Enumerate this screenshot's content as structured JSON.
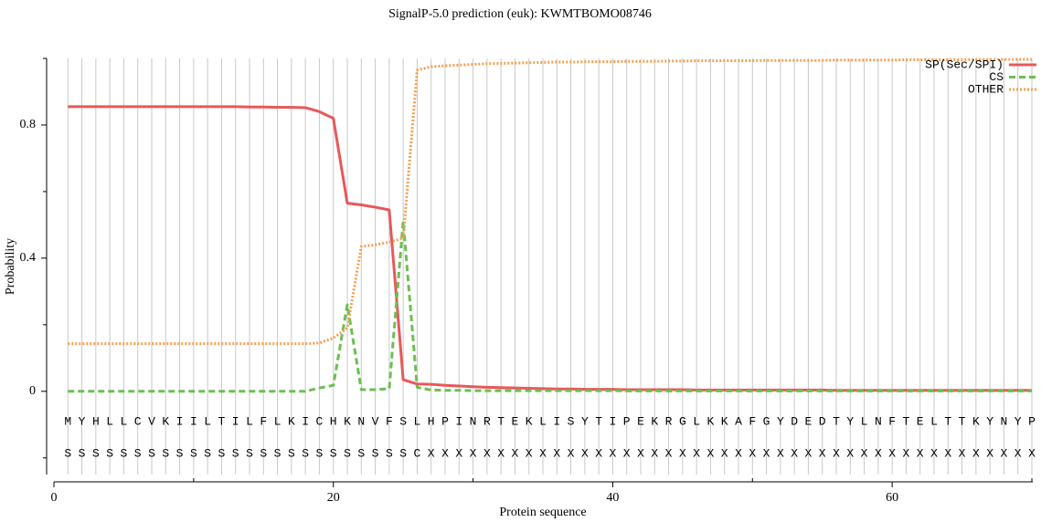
{
  "chart_data": {
    "type": "line",
    "title": "SignalP-5.0 prediction (euk):  KWMTBOMO08746",
    "x_label": "Protein sequence",
    "y_label": "Probability",
    "x": [
      1,
      2,
      3,
      4,
      5,
      6,
      7,
      8,
      9,
      10,
      11,
      12,
      13,
      14,
      15,
      16,
      17,
      18,
      19,
      20,
      21,
      22,
      23,
      24,
      25,
      26,
      27,
      28,
      29,
      30,
      31,
      32,
      33,
      34,
      35,
      36,
      37,
      38,
      39,
      40,
      41,
      42,
      43,
      44,
      45,
      46,
      47,
      48,
      49,
      50,
      51,
      52,
      53,
      54,
      55,
      56,
      57,
      58,
      59,
      60,
      61,
      62,
      63,
      64,
      65,
      66,
      67,
      68,
      69,
      70
    ],
    "sequence": [
      "M",
      "Y",
      "H",
      "L",
      "L",
      "C",
      "V",
      "K",
      "I",
      "I",
      "L",
      "T",
      "I",
      "L",
      "F",
      "L",
      "K",
      "I",
      "C",
      "H",
      "K",
      "N",
      "V",
      "F",
      "S",
      "L",
      "H",
      "P",
      "I",
      "N",
      "R",
      "T",
      "E",
      "K",
      "L",
      "I",
      "S",
      "Y",
      "T",
      "I",
      "P",
      "E",
      "K",
      "R",
      "G",
      "L",
      "K",
      "K",
      "A",
      "F",
      "G",
      "Y",
      "D",
      "E",
      "D",
      "T",
      "Y",
      "L",
      "N",
      "F",
      "T",
      "E",
      "L",
      "T",
      "T",
      "K",
      "Y",
      "N",
      "Y",
      "P"
    ],
    "labels": [
      "S",
      "S",
      "S",
      "S",
      "S",
      "S",
      "S",
      "S",
      "S",
      "S",
      "S",
      "S",
      "S",
      "S",
      "S",
      "S",
      "S",
      "S",
      "S",
      "S",
      "S",
      "S",
      "S",
      "S",
      "S",
      "C",
      "X",
      "X",
      "X",
      "X",
      "X",
      "X",
      "X",
      "X",
      "X",
      "X",
      "X",
      "X",
      "X",
      "X",
      "X",
      "X",
      "X",
      "X",
      "X",
      "X",
      "X",
      "X",
      "X",
      "X",
      "X",
      "X",
      "X",
      "X",
      "X",
      "X",
      "X",
      "X",
      "X",
      "X",
      "X",
      "X",
      "X",
      "X",
      "X",
      "X",
      "X",
      "X",
      "X",
      "X"
    ],
    "series": [
      {
        "name": "SP(Sec/SPI)",
        "color": "#e8585a",
        "style": "solid",
        "values": [
          0.855,
          0.855,
          0.855,
          0.855,
          0.855,
          0.855,
          0.855,
          0.855,
          0.855,
          0.855,
          0.855,
          0.855,
          0.855,
          0.854,
          0.854,
          0.853,
          0.853,
          0.852,
          0.84,
          0.82,
          0.565,
          0.56,
          0.553,
          0.545,
          0.035,
          0.022,
          0.021,
          0.018,
          0.016,
          0.014,
          0.012,
          0.011,
          0.01,
          0.009,
          0.008,
          0.007,
          0.007,
          0.006,
          0.006,
          0.006,
          0.005,
          0.005,
          0.005,
          0.005,
          0.005,
          0.004,
          0.004,
          0.004,
          0.004,
          0.004,
          0.004,
          0.004,
          0.004,
          0.004,
          0.004,
          0.003,
          0.003,
          0.003,
          0.003,
          0.003,
          0.003,
          0.003,
          0.003,
          0.003,
          0.003,
          0.003,
          0.003,
          0.003,
          0.003,
          0.003
        ]
      },
      {
        "name": "CS",
        "color": "#6cbf52",
        "style": "dashed",
        "values": [
          0,
          0,
          0,
          0,
          0,
          0,
          0,
          0,
          0,
          0,
          0,
          0,
          0,
          0,
          0,
          0,
          0,
          0,
          0.01,
          0.018,
          0.26,
          0.005,
          0.005,
          0.008,
          0.51,
          0.012,
          0.004,
          0.003,
          0.003,
          0.002,
          0.002,
          0.002,
          0.002,
          0.002,
          0.002,
          0.002,
          0.002,
          0.002,
          0.002,
          0.002,
          0.001,
          0.001,
          0.001,
          0.001,
          0.001,
          0.001,
          0.001,
          0.001,
          0.001,
          0.001,
          0.001,
          0.001,
          0.001,
          0.001,
          0.001,
          0.001,
          0.001,
          0.001,
          0.001,
          0.001,
          0.001,
          0.001,
          0.001,
          0.001,
          0.001,
          0.001,
          0.001,
          0.001,
          0.001,
          0.001
        ]
      },
      {
        "name": "OTHER",
        "color": "#f5a050",
        "style": "dotted",
        "values": [
          0.143,
          0.143,
          0.143,
          0.143,
          0.143,
          0.143,
          0.143,
          0.143,
          0.143,
          0.143,
          0.143,
          0.143,
          0.143,
          0.143,
          0.143,
          0.143,
          0.143,
          0.143,
          0.145,
          0.16,
          0.19,
          0.435,
          0.44,
          0.448,
          0.46,
          0.965,
          0.975,
          0.978,
          0.98,
          0.982,
          0.984,
          0.985,
          0.986,
          0.987,
          0.988,
          0.989,
          0.989,
          0.99,
          0.99,
          0.99,
          0.991,
          0.991,
          0.991,
          0.992,
          0.992,
          0.993,
          0.993,
          0.993,
          0.993,
          0.993,
          0.994,
          0.994,
          0.994,
          0.994,
          0.994,
          0.995,
          0.995,
          0.995,
          0.995,
          0.995,
          0.996,
          0.996,
          0.996,
          0.996,
          0.996,
          0.997,
          0.997,
          0.997,
          0.997,
          0.997
        ]
      }
    ],
    "xlim": [
      0,
      70
    ],
    "xticks": [
      0,
      20,
      40,
      60
    ],
    "xminorticks": [
      10,
      30,
      50,
      70
    ],
    "ylim": [
      -0.25,
      1.0
    ],
    "yticks": [
      0,
      0.4,
      0.8
    ],
    "yminorticks": [
      -0.2,
      0.2,
      0.6,
      1.0
    ],
    "grid": true,
    "legend": "top-right"
  }
}
